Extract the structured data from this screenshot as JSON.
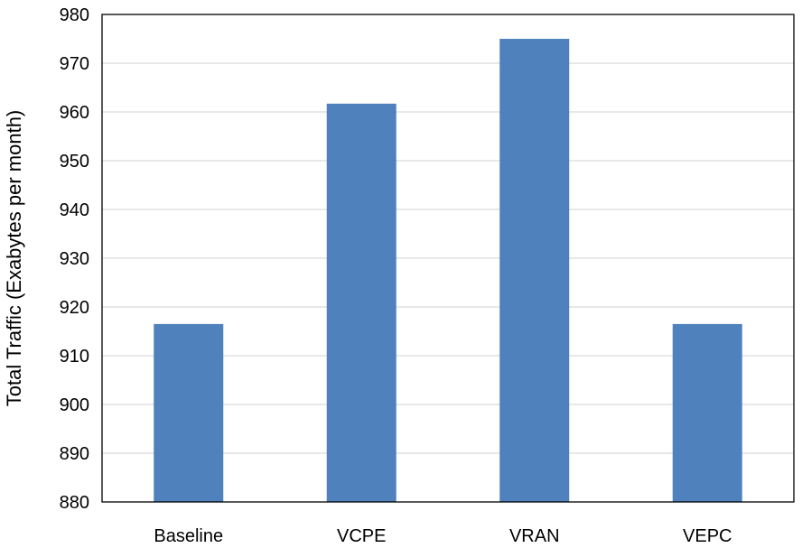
{
  "chart_data": {
    "type": "bar",
    "title": "",
    "xlabel": "",
    "ylabel": "Total Traffic (Exabytes per month)",
    "categories": [
      "Baseline",
      "VCPE",
      "VRAN",
      "VEPC"
    ],
    "values": [
      916.5,
      961.7,
      975.0,
      916.5
    ],
    "ylim": [
      880,
      980
    ],
    "yticks": [
      880,
      890,
      900,
      910,
      920,
      930,
      940,
      950,
      960,
      970,
      980
    ],
    "grid": true,
    "legend": "none",
    "bar_color": "#4f81bd",
    "grid_color": "#d9d9d9",
    "axis_color": "#000000"
  }
}
